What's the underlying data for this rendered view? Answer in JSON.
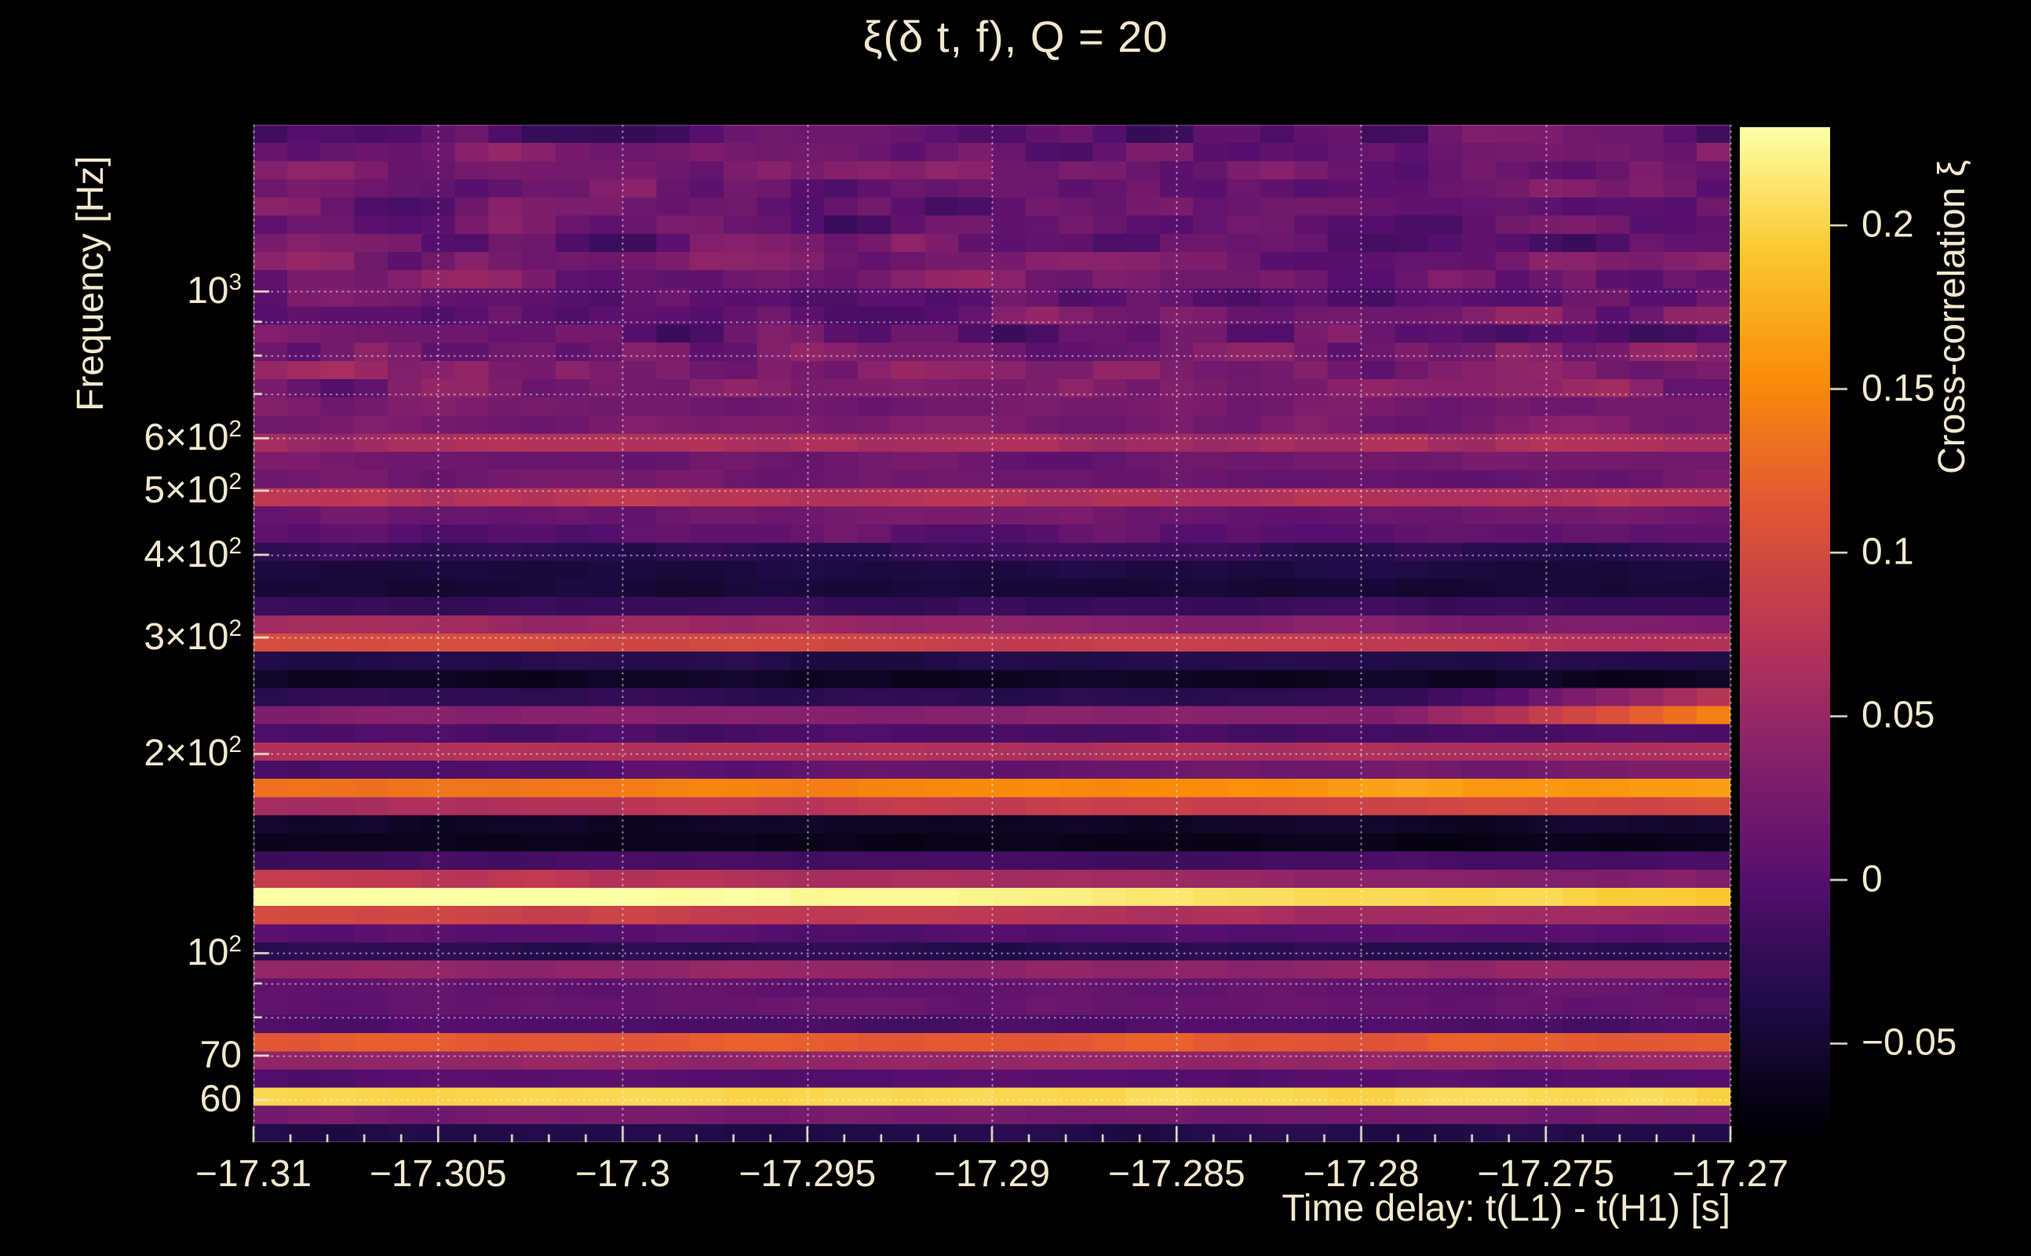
{
  "title": "ξ(δ t, f), Q = 20",
  "colors": {
    "background": "#000000",
    "text": "#f1e8cf",
    "grid": "rgba(255,255,255,0.72)",
    "tick": "#f1e8cf",
    "frame": "rgba(240,230,200,0.28)"
  },
  "chart_data": {
    "type": "heatmap",
    "title": "ξ(δ t, f), Q = 20",
    "xlabel": "Time delay: t(L1) - t(H1) [s]",
    "ylabel": "Frequency [Hz]",
    "colorbar_label": "Cross-correlation ξ",
    "x_range": [
      -17.31,
      -17.27
    ],
    "y_range_hz": [
      51.8,
      1786
    ],
    "y_scale": "log",
    "value_range": [
      -0.077,
      0.23
    ],
    "x_minor_step": 0.001,
    "x_ticks": [
      {
        "value": -17.31,
        "label": "−17.31"
      },
      {
        "value": -17.305,
        "label": "−17.305"
      },
      {
        "value": -17.3,
        "label": "−17.3"
      },
      {
        "value": -17.295,
        "label": "−17.295"
      },
      {
        "value": -17.29,
        "label": "−17.29"
      },
      {
        "value": -17.285,
        "label": "−17.285"
      },
      {
        "value": -17.28,
        "label": "−17.28"
      },
      {
        "value": -17.275,
        "label": "−17.275"
      },
      {
        "value": -17.27,
        "label": "−17.27"
      }
    ],
    "y_ticks": [
      {
        "value": 1000,
        "base": "10",
        "exp": "3"
      },
      {
        "value": 600,
        "base": "6×10",
        "exp": "2"
      },
      {
        "value": 500,
        "base": "5×10",
        "exp": "2"
      },
      {
        "value": 400,
        "base": "4×10",
        "exp": "2"
      },
      {
        "value": 300,
        "base": "3×10",
        "exp": "2"
      },
      {
        "value": 200,
        "base": "2×10",
        "exp": "2"
      },
      {
        "value": 100,
        "base": "10",
        "exp": "2"
      },
      {
        "value": 70,
        "base": "70",
        "exp": ""
      },
      {
        "value": 60,
        "base": "60",
        "exp": ""
      }
    ],
    "grid_freqs": [
      60,
      70,
      80,
      90,
      100,
      200,
      300,
      400,
      500,
      600,
      700,
      800,
      900,
      1000
    ],
    "colorbar_ticks": [
      {
        "value": 0.2,
        "label": "0.2"
      },
      {
        "value": 0.15,
        "label": "0.15"
      },
      {
        "value": 0.1,
        "label": "0.1"
      },
      {
        "value": 0.05,
        "label": "0.05"
      },
      {
        "value": 0,
        "label": "0"
      },
      {
        "value": -0.05,
        "label": "−0.05"
      }
    ],
    "colormap": {
      "name": "inferno",
      "stops": [
        [
          0.0,
          "#000004"
        ],
        [
          0.13,
          "#1f0c48"
        ],
        [
          0.25,
          "#550f6d"
        ],
        [
          0.38,
          "#88226a"
        ],
        [
          0.5,
          "#ba3655"
        ],
        [
          0.63,
          "#e35933"
        ],
        [
          0.75,
          "#f98c0a"
        ],
        [
          0.88,
          "#f9c932"
        ],
        [
          1.0,
          "#fcffa4"
        ]
      ]
    },
    "heatmap": {
      "cols": 44,
      "rows": 56,
      "bands": [
        [
          52,
          -0.05
        ],
        [
          56,
          -0.012
        ],
        [
          58.5,
          0.08
        ],
        [
          60.5,
          0.215
        ],
        [
          63,
          0.04
        ],
        [
          66,
          -0.035
        ],
        [
          69,
          0.05
        ],
        [
          72,
          0.13
        ],
        [
          75,
          0.1
        ],
        [
          78,
          -0.01
        ],
        [
          81,
          0.06
        ],
        [
          85,
          -0.025
        ],
        [
          89,
          0.012
        ],
        [
          93,
          0.085
        ],
        [
          97,
          -0.02
        ],
        [
          102,
          -0.035
        ],
        [
          107,
          0.0
        ],
        [
          112,
          0.045
        ],
        [
          118,
          0.19
        ],
        [
          123,
          0.265
        ],
        [
          127,
          0.14
        ],
        [
          132,
          0.03
        ],
        [
          138,
          -0.012
        ],
        [
          145,
          -0.062
        ],
        [
          152,
          -0.07
        ],
        [
          158,
          -0.05
        ],
        [
          164,
          0.03
        ],
        [
          171,
          0.115
        ],
        [
          178,
          0.135
        ],
        [
          184,
          0.09
        ],
        [
          190,
          -0.018
        ],
        [
          196,
          -0.03
        ],
        [
          201,
          0.075
        ],
        [
          207,
          0.0
        ],
        [
          213,
          -0.015
        ],
        [
          221,
          0.012
        ],
        [
          228,
          0.04
        ],
        [
          236,
          0.012
        ],
        [
          244,
          -0.03
        ],
        [
          252,
          -0.05
        ],
        [
          262,
          -0.062
        ],
        [
          272,
          -0.055
        ],
        [
          283,
          -0.008
        ],
        [
          294,
          0.105
        ],
        [
          305,
          0.12
        ],
        [
          317,
          0.04
        ],
        [
          330,
          -0.015
        ],
        [
          343,
          -0.032
        ],
        [
          357,
          -0.048
        ],
        [
          371,
          -0.03
        ],
        [
          386,
          -0.052
        ],
        [
          401,
          -0.03
        ],
        [
          417,
          -0.012
        ],
        [
          434,
          0.012
        ],
        [
          451,
          0.032
        ],
        [
          469,
          0.002
        ],
        [
          488,
          0.072
        ],
        [
          507,
          0.06
        ],
        [
          527,
          0.002
        ],
        [
          549,
          0.022
        ],
        [
          571,
          0.012
        ],
        [
          594,
          0.072
        ],
        [
          617,
          0.05
        ],
        [
          642,
          0.002
        ],
        [
          668,
          0.022
        ],
        [
          694,
          0.042
        ],
        [
          722,
          0.022
        ],
        [
          751,
          0.052
        ],
        [
          781,
          0.002
        ],
        [
          812,
          0.022
        ],
        [
          845,
          -0.01
        ],
        [
          879,
          0.03
        ],
        [
          914,
          0.012
        ],
        [
          950,
          0.042
        ],
        [
          988,
          0.002
        ],
        [
          1028,
          0.022
        ],
        [
          1069,
          0.012
        ],
        [
          1112,
          0.032
        ],
        [
          1156,
          0.002
        ],
        [
          1203,
          0.022
        ],
        [
          1251,
          0.002
        ],
        [
          1301,
          0.032
        ],
        [
          1353,
          0.012
        ],
        [
          1407,
          0.022
        ],
        [
          1464,
          0.002
        ],
        [
          1522,
          0.022
        ],
        [
          1583,
          0.012
        ],
        [
          1647,
          0.03
        ],
        [
          1713,
          0.002
        ],
        [
          1786,
          0.012
        ]
      ],
      "noise_amps": [
        {
          "f_min": 700,
          "amp": 0.04
        },
        {
          "f_min": 380,
          "f_max": 700,
          "amp": 0.018
        },
        {
          "f_max": 380,
          "amp": 0.009
        }
      ],
      "trends": [
        {
          "f_min": 215,
          "f_max": 252,
          "mode": "right-boost",
          "amount": 0.105,
          "start": 0.78
        },
        {
          "f_min": 160,
          "f_max": 192,
          "mode": "linear",
          "amount": 0.035
        },
        {
          "f_min": 113,
          "f_max": 130,
          "mode": "linear",
          "amount": -0.05
        },
        {
          "f_min": 285,
          "f_max": 315,
          "mode": "linear",
          "amount": -0.035
        }
      ]
    }
  }
}
